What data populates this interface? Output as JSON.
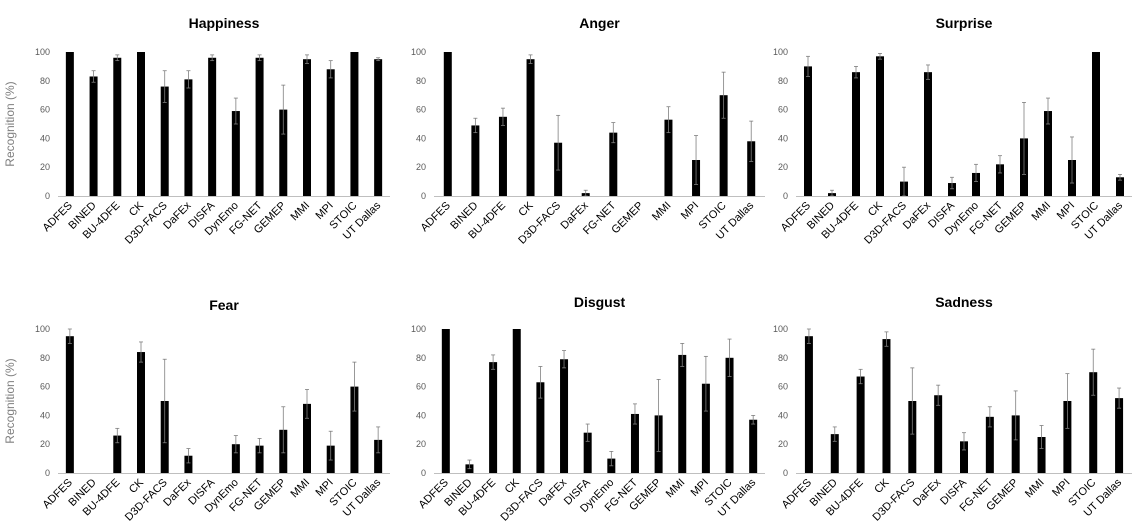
{
  "chart_data": [
    {
      "type": "bar",
      "title": "Happiness",
      "ylabel": "Recognition (%)",
      "ylim": [
        0,
        100
      ],
      "yticks": [
        0,
        20,
        40,
        60,
        80,
        100
      ],
      "categories": [
        "ADFES",
        "BINED",
        "BU-4DFE",
        "CK",
        "D3D-FACS",
        "DaFEx",
        "DISFA",
        "DynEmo",
        "FG-NET",
        "GEMEP",
        "MMI",
        "MPI",
        "STOIC",
        "UT Dallas"
      ],
      "values": [
        100,
        83,
        96,
        100,
        76,
        81,
        96,
        59,
        96,
        60,
        95,
        88,
        100,
        95
      ],
      "errors": [
        0,
        4,
        2,
        0,
        11,
        6,
        2,
        9,
        2,
        17,
        3,
        6,
        0,
        1
      ]
    },
    {
      "type": "bar",
      "title": "Anger",
      "ylabel": "",
      "ylim": [
        0,
        100
      ],
      "yticks": [
        0,
        20,
        40,
        60,
        80,
        100
      ],
      "categories": [
        "ADFES",
        "BINED",
        "BU-4DFE",
        "CK",
        "D3D-FACS",
        "DaFEx",
        "FG-NET",
        "GEMEP",
        "MMI",
        "MPI",
        "STOIC",
        "UT Dallas"
      ],
      "values": [
        100,
        49,
        55,
        95,
        37,
        2,
        44,
        0,
        53,
        25,
        70,
        38
      ],
      "errors": [
        0,
        5,
        6,
        3,
        19,
        2,
        7,
        0,
        9,
        17,
        16,
        14
      ]
    },
    {
      "type": "bar",
      "title": "Surprise",
      "ylabel": "",
      "ylim": [
        0,
        100
      ],
      "yticks": [
        0,
        20,
        40,
        60,
        80,
        100
      ],
      "categories": [
        "ADFES",
        "BINED",
        "BU-4DFE",
        "CK",
        "D3D-FACS",
        "DaFEx",
        "DISFA",
        "DynEmo",
        "FG-NET",
        "GEMEP",
        "MMI",
        "MPI",
        "STOIC",
        "UT Dallas"
      ],
      "values": [
        90,
        2,
        86,
        97,
        10,
        86,
        9,
        16,
        22,
        40,
        59,
        25,
        100,
        13
      ],
      "errors": [
        7,
        2,
        4,
        2,
        10,
        5,
        4,
        6,
        6,
        25,
        9,
        16,
        0,
        2
      ]
    },
    {
      "type": "bar",
      "title": "Fear",
      "ylabel": "Recognition (%)",
      "ylim": [
        0,
        100
      ],
      "yticks": [
        0,
        20,
        40,
        60,
        80,
        100
      ],
      "categories": [
        "ADFES",
        "BINED",
        "BU-4DFE",
        "CK",
        "D3D-FACS",
        "DaFEx",
        "DISFA",
        "DynEmo",
        "FG-NET",
        "GEMEP",
        "MMI",
        "MPI",
        "STOIC",
        "UT Dallas"
      ],
      "values": [
        95,
        0,
        26,
        84,
        50,
        12,
        0,
        20,
        19,
        30,
        48,
        19,
        60,
        23
      ],
      "errors": [
        5,
        0,
        5,
        7,
        29,
        5,
        0,
        6,
        5,
        16,
        10,
        10,
        17,
        9
      ]
    },
    {
      "type": "bar",
      "title": "Disgust",
      "ylabel": "",
      "ylim": [
        0,
        100
      ],
      "yticks": [
        0,
        20,
        40,
        60,
        80,
        100
      ],
      "categories": [
        "ADFES",
        "BINED",
        "BU-4DFE",
        "CK",
        "D3D-FACS",
        "DaFEx",
        "DISFA",
        "DynEmo",
        "FG-NET",
        "GEMEP",
        "MMI",
        "MPI",
        "STOIC",
        "UT Dallas"
      ],
      "values": [
        100,
        6,
        77,
        100,
        63,
        79,
        28,
        10,
        41,
        40,
        82,
        62,
        80,
        37
      ],
      "errors": [
        0,
        3,
        5,
        0,
        11,
        6,
        6,
        5,
        7,
        25,
        8,
        19,
        13,
        3
      ]
    },
    {
      "type": "bar",
      "title": "Sadness",
      "ylabel": "",
      "ylim": [
        0,
        100
      ],
      "yticks": [
        0,
        20,
        40,
        60,
        80,
        100
      ],
      "categories": [
        "ADFES",
        "BINED",
        "BU-4DFE",
        "CK",
        "D3D-FACS",
        "DaFEx",
        "DISFA",
        "FG-NET",
        "GEMEP",
        "MMI",
        "MPI",
        "STOIC",
        "UT Dallas"
      ],
      "values": [
        95,
        27,
        67,
        93,
        50,
        54,
        22,
        39,
        40,
        25,
        50,
        70,
        52
      ],
      "errors": [
        5,
        5,
        5,
        5,
        23,
        7,
        6,
        7,
        17,
        8,
        19,
        16,
        7
      ]
    }
  ]
}
